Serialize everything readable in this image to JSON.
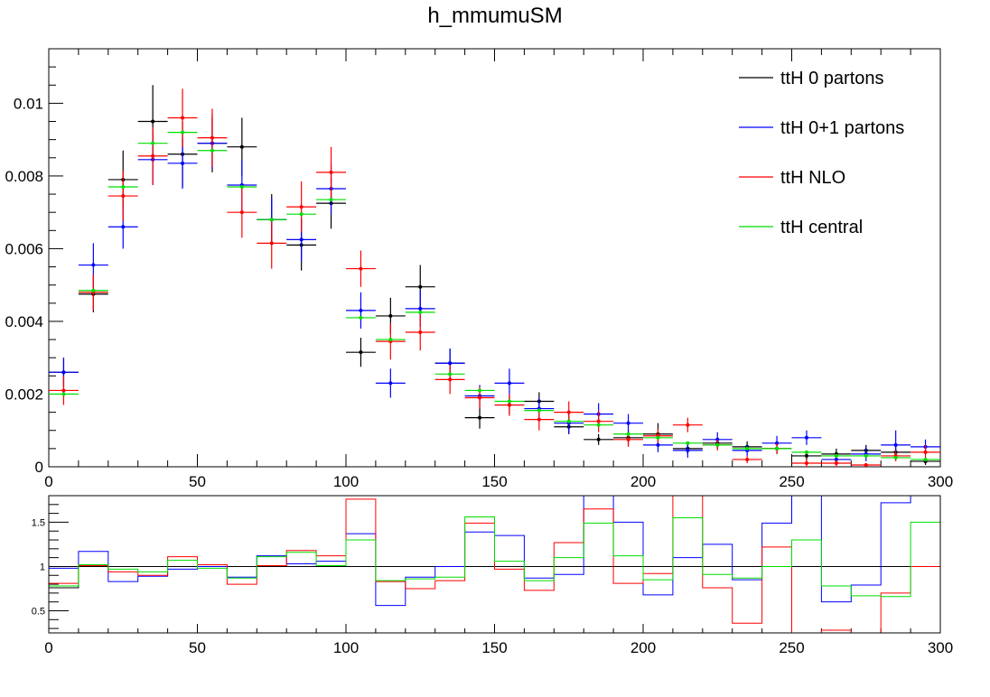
{
  "chart_data": [
    {
      "type": "scatter",
      "title": "h_mmumuSM",
      "xlabel": "",
      "ylabel": "",
      "xlim": [
        0,
        300
      ],
      "ylim": [
        0,
        0.0115
      ],
      "bin_width": 10,
      "x": [
        5,
        15,
        25,
        35,
        45,
        55,
        65,
        75,
        85,
        95,
        105,
        115,
        125,
        135,
        145,
        155,
        165,
        175,
        185,
        195,
        205,
        215,
        225,
        235,
        245,
        255,
        265,
        275,
        285,
        295
      ],
      "x_ticks": [
        "0",
        "50",
        "100",
        "150",
        "200",
        "250",
        "300"
      ],
      "y_ticks": [
        "0",
        "0.002",
        "0.004",
        "0.006",
        "0.008",
        "0.01"
      ],
      "legend_position": "top-right",
      "grid": false,
      "series": [
        {
          "name": "ttH 0 partons",
          "color": "#000000",
          "values": [
            0.0026,
            0.00475,
            0.0079,
            0.0095,
            0.0086,
            0.0089,
            0.0088,
            0.0068,
            0.0061,
            0.00725,
            0.00315,
            0.00415,
            0.00495,
            0.00285,
            0.00135,
            0.0017,
            0.0018,
            0.0011,
            0.00075,
            0.0008,
            0.0009,
            0.0005,
            0.00065,
            0.00055,
            0.0005,
            0.0003,
            0.00035,
            0.00045,
            0.0004,
            0.00015
          ],
          "errors": [
            0.0004,
            0.0005,
            0.0008,
            0.001,
            0.0009,
            0.0008,
            0.0008,
            0.0007,
            0.0007,
            0.0007,
            0.0004,
            0.0005,
            0.0006,
            0.0004,
            0.0003,
            0.00025,
            0.00025,
            0.0002,
            0.00015,
            0.0002,
            0.0003,
            0.00015,
            0.00015,
            0.00015,
            0.00015,
            0.00015,
            0.00015,
            0.00015,
            0.00015,
            0.0001
          ]
        },
        {
          "name": "ttH 0+1 partons",
          "color": "#0000ff",
          "values": [
            0.0026,
            0.00555,
            0.0066,
            0.00845,
            0.00835,
            0.0089,
            0.00775,
            0.0068,
            0.00625,
            0.00765,
            0.0043,
            0.0023,
            0.00435,
            0.00285,
            0.00195,
            0.0023,
            0.0016,
            0.0012,
            0.00145,
            0.0012,
            0.0006,
            0.00045,
            0.00075,
            0.00045,
            0.00065,
            0.0008,
            0.0002,
            0.00035,
            0.0006,
            0.00055
          ],
          "errors": [
            0.0004,
            0.0006,
            0.0006,
            0.0007,
            0.0007,
            0.0007,
            0.0007,
            0.0006,
            0.0006,
            0.0007,
            0.0005,
            0.0004,
            0.0005,
            0.0004,
            0.0003,
            0.0004,
            0.0003,
            0.0003,
            0.0003,
            0.00025,
            0.0002,
            0.0002,
            0.0002,
            0.00015,
            0.0002,
            0.0002,
            0.00015,
            0.0002,
            0.0004,
            0.0002
          ]
        },
        {
          "name": "ttH NLO",
          "color": "#ff0000",
          "values": [
            0.0021,
            0.0048,
            0.00745,
            0.00855,
            0.0096,
            0.00905,
            0.007,
            0.00615,
            0.00715,
            0.0081,
            0.00545,
            0.00345,
            0.0037,
            0.0024,
            0.0019,
            0.0017,
            0.0013,
            0.0015,
            0.00125,
            0.00075,
            0.00085,
            0.00115,
            0.0006,
            0.0002,
            0.0005,
            0.0001,
            0.0001,
            5e-05,
            0.0003,
            0.0004
          ],
          "errors": [
            0.0004,
            0.0005,
            0.0007,
            0.0008,
            0.0008,
            0.0008,
            0.0007,
            0.0007,
            0.0007,
            0.0007,
            0.0005,
            0.0005,
            0.0005,
            0.0004,
            0.0003,
            0.0003,
            0.0003,
            0.0003,
            0.0003,
            0.0002,
            0.0002,
            0.0002,
            0.00015,
            0.0001,
            0.00015,
            0.0001,
            0.0001,
            5e-05,
            0.00015,
            0.0002
          ]
        },
        {
          "name": "ttH central",
          "color": "#00dd00",
          "values": [
            0.002,
            0.00485,
            0.0077,
            0.0089,
            0.0092,
            0.0087,
            0.0077,
            0.0068,
            0.00695,
            0.00735,
            0.0041,
            0.0035,
            0.00425,
            0.00255,
            0.0021,
            0.0018,
            0.00155,
            0.00125,
            0.00115,
            0.0009,
            0.0008,
            0.00065,
            0.0006,
            0.0005,
            0.0005,
            0.0004,
            0.0003,
            0.0003,
            0.00025,
            0.0002
          ],
          "errors": [
            0,
            0,
            0,
            0,
            0,
            0,
            0,
            0,
            0,
            0,
            0,
            0,
            0,
            0,
            0,
            0,
            0,
            0,
            0,
            0,
            0,
            0,
            0,
            0,
            0,
            0,
            0,
            0,
            0,
            0
          ]
        }
      ]
    },
    {
      "type": "line",
      "title": "",
      "xlabel": "",
      "ylabel": "",
      "xlim": [
        0,
        300
      ],
      "ylim": [
        0.25,
        1.8
      ],
      "bin_width": 10,
      "x": [
        5,
        15,
        25,
        35,
        45,
        55,
        65,
        75,
        85,
        95,
        105,
        115,
        125,
        135,
        145,
        155,
        165,
        175,
        185,
        195,
        205,
        215,
        225,
        235,
        245,
        255,
        265,
        275,
        285,
        295
      ],
      "x_ticks": [
        "0",
        "50",
        "100",
        "150",
        "200",
        "250",
        "300"
      ],
      "y_ticks": [
        "0.5",
        "1",
        "1.5"
      ],
      "reference_line": 1,
      "series": [
        {
          "name": "",
          "color": "#000000",
          "values": [
            0.76,
            1.0,
            1.0,
            1.0,
            1.0,
            1.0,
            1.0,
            1.0,
            1.0,
            1.0,
            1.0,
            1.0,
            1.0,
            1.0,
            1.0,
            1.0,
            1.0,
            1.0,
            1.0,
            1.0,
            1.0,
            1.0,
            1.0,
            1.0,
            1.0,
            1.0,
            1.0,
            1.0,
            1.0,
            1.0
          ]
        },
        {
          "name": "",
          "color": "#0000ff",
          "values": [
            0.98,
            1.17,
            0.83,
            0.89,
            0.97,
            1.0,
            0.88,
            1.12,
            1.03,
            1.06,
            1.37,
            0.56,
            0.88,
            1.0,
            1.39,
            1.35,
            0.87,
            0.91,
            1.9,
            1.5,
            0.68,
            1.1,
            1.25,
            0.85,
            1.49,
            2.1,
            0.6,
            0.79,
            1.72,
            1.9
          ]
        },
        {
          "name": "",
          "color": "#ff0000",
          "values": [
            0.81,
            1.01,
            0.94,
            0.9,
            1.11,
            1.02,
            0.8,
            1.01,
            1.18,
            1.12,
            1.76,
            0.83,
            0.75,
            0.84,
            1.49,
            0.97,
            0.73,
            1.27,
            1.65,
            0.81,
            0.92,
            2.0,
            0.76,
            0.36,
            1.22,
            0.25,
            0.28,
            0.12,
            0.7,
            1.0
          ]
        },
        {
          "name": "",
          "color": "#00dd00",
          "values": [
            0.78,
            1.02,
            0.97,
            0.94,
            1.07,
            0.98,
            0.87,
            1.11,
            1.16,
            1.01,
            1.3,
            0.84,
            0.86,
            0.88,
            1.56,
            1.06,
            0.84,
            1.1,
            1.49,
            1.12,
            0.85,
            1.55,
            0.91,
            0.87,
            1.0,
            1.3,
            0.78,
            0.67,
            0.66,
            1.5
          ]
        }
      ]
    }
  ]
}
